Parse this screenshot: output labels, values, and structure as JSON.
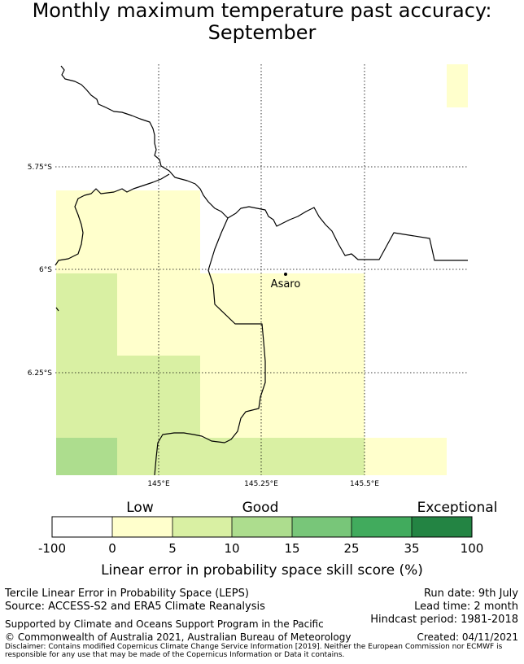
{
  "title": {
    "line1": "Monthly maximum temperature past accuracy:",
    "line2": "September"
  },
  "map": {
    "place_label": "Asaro",
    "lat_labels": [
      "5.75°S",
      "6°S",
      "6.25°S"
    ],
    "lon_labels": [
      "145°E",
      "145.25°E",
      "145.5°E"
    ]
  },
  "legend": {
    "category_labels": [
      "Low",
      "Good",
      "Exceptional"
    ],
    "tick_labels": [
      "-100",
      "0",
      "5",
      "10",
      "15",
      "25",
      "35",
      "100"
    ],
    "colors": [
      "#ffffff",
      "#ffffcc",
      "#d9f0a3",
      "#addd8e",
      "#78c679",
      "#41ab5d",
      "#238443"
    ],
    "axis_label": "Linear error in probability space skill score (%)"
  },
  "footer": {
    "method": "Tercile Linear Error in Probability Space (LEPS)",
    "source": "Source: ACCESS-S2 and ERA5 Climate Reanalysis",
    "support": "Supported by Climate and Oceans Support Program in the Pacific",
    "copyright": "© Commonwealth of Australia 2021, Australian Bureau of Meteorology",
    "disclaimer": "Disclaimer: Contains modified Copernicus Climate Change Service Information [2019]. Neither the European Commission nor ECMWF is responsible for any use that may be made of the Copernicus Information or Data it contains.",
    "run_date": "Run date: 9th July",
    "lead_time": "Lead time: 2 month",
    "hindcast": "Hindcast period: 1981-2018",
    "created": "Created: 04/11/2021"
  }
}
